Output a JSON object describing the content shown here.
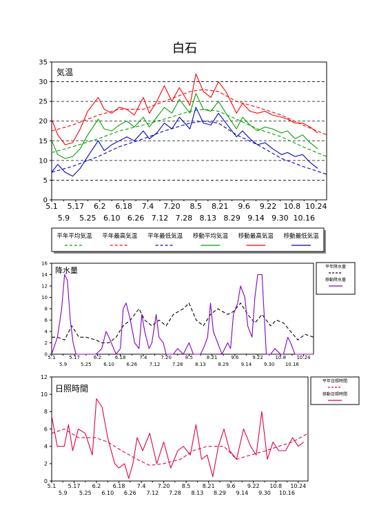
{
  "page": {
    "title": "白石"
  },
  "chart_data": [
    {
      "type": "line",
      "panel_label": "気温",
      "ylim": [
        0,
        35
      ],
      "yticks": [
        0,
        5,
        10,
        15,
        20,
        25,
        30,
        35
      ],
      "x_start": "5.1",
      "x_end": "10.31",
      "xticks_top": [
        "5.1",
        "5.17",
        "6.2",
        "6.18",
        "7.4",
        "7.20",
        "8.5",
        "8.21",
        "9.6",
        "9.22",
        "10.8",
        "10.24"
      ],
      "xticks_bottom": [
        "5.9",
        "5.25",
        "6.10",
        "6.26",
        "7.12",
        "7.28",
        "8.13",
        "8.29",
        "9.14",
        "9.30",
        "10.16"
      ],
      "legend": [
        "平年平均気温",
        "平年最高気温",
        "平年最低気温",
        "移動平均気温",
        "移動最高気温",
        "移動最低気温"
      ],
      "colors": {
        "mean": "#00a000",
        "max": "#ff0000",
        "min": "#0000c0",
        "grid": "#000000"
      },
      "series": [
        {
          "name": "平年平均気温",
          "color": "#00a000",
          "dash": true,
          "x": [
            "5.1",
            "5.15",
            "6.1",
            "6.15",
            "7.1",
            "7.15",
            "8.1",
            "8.10",
            "8.20",
            "9.1",
            "9.15",
            "10.1",
            "10.15",
            "10.31"
          ],
          "y": [
            12,
            13.5,
            15.5,
            17.5,
            19,
            20.5,
            22.5,
            23,
            22.5,
            20.5,
            18,
            16,
            13.5,
            11
          ]
        },
        {
          "name": "平年最高気温",
          "color": "#ff0000",
          "dash": true,
          "x": [
            "5.1",
            "5.15",
            "6.1",
            "6.15",
            "7.1",
            "7.15",
            "8.1",
            "8.10",
            "8.20",
            "9.1",
            "9.15",
            "10.1",
            "10.15",
            "10.31"
          ],
          "y": [
            17.5,
            19,
            21.5,
            23,
            23,
            25,
            27.5,
            28,
            27.5,
            25,
            23.5,
            21.5,
            19,
            16.5
          ]
        },
        {
          "name": "平年最低気温",
          "color": "#0000c0",
          "dash": true,
          "x": [
            "5.1",
            "5.15",
            "6.1",
            "6.15",
            "7.1",
            "7.15",
            "8.1",
            "8.10",
            "8.20",
            "9.1",
            "9.15",
            "10.1",
            "10.15",
            "10.31"
          ],
          "y": [
            7,
            8.5,
            11,
            13.5,
            15.5,
            17.5,
            19.5,
            20,
            19.5,
            16.5,
            14,
            10.5,
            8.5,
            6.5
          ]
        },
        {
          "name": "移動平均気温",
          "color": "#00a000",
          "dash": false,
          "x": [
            "5.1",
            "5.5",
            "5.10",
            "5.15",
            "5.20",
            "5.25",
            "6.1",
            "6.5",
            "6.10",
            "6.15",
            "6.20",
            "6.25",
            "7.1",
            "7.5",
            "7.10",
            "7.15",
            "7.20",
            "7.25",
            "8.1",
            "8.5",
            "8.10",
            "8.15",
            "8.20",
            "8.25",
            "9.1",
            "9.5",
            "9.10",
            "9.15",
            "9.20",
            "9.25",
            "10.1",
            "10.5",
            "10.10",
            "10.15",
            "10.20",
            "10.25"
          ],
          "y": [
            15,
            11.5,
            10.5,
            11,
            13,
            16.5,
            20.5,
            18,
            17.5,
            19,
            20,
            18.5,
            21,
            18.5,
            21,
            23.5,
            22,
            25.5,
            22,
            27,
            23,
            22.5,
            25,
            22,
            18,
            21,
            19,
            17.5,
            18.5,
            18,
            17,
            17.5,
            15.5,
            16.5,
            14.5,
            13
          ]
        },
        {
          "name": "移動最高気温",
          "color": "#ff0000",
          "dash": false,
          "x": [
            "5.1",
            "5.5",
            "5.10",
            "5.15",
            "5.20",
            "5.25",
            "6.1",
            "6.5",
            "6.10",
            "6.15",
            "6.20",
            "6.25",
            "7.1",
            "7.5",
            "7.10",
            "7.15",
            "7.20",
            "7.25",
            "8.1",
            "8.5",
            "8.10",
            "8.15",
            "8.20",
            "8.25",
            "9.1",
            "9.5",
            "9.10",
            "9.15",
            "9.20",
            "9.25",
            "10.1",
            "10.5",
            "10.10",
            "10.15",
            "10.20",
            "10.25"
          ],
          "y": [
            20.5,
            16.5,
            14,
            14.5,
            18,
            22.5,
            26,
            23,
            22,
            23.5,
            23,
            21.5,
            26,
            22,
            25,
            29,
            25,
            28.5,
            24,
            32,
            27.5,
            26,
            30,
            27.5,
            22,
            24.5,
            22.5,
            22,
            22.5,
            21.5,
            21,
            20.5,
            19.5,
            19.5,
            18.5,
            17
          ]
        },
        {
          "name": "移動最低気温",
          "color": "#0000c0",
          "dash": false,
          "x": [
            "5.1",
            "5.5",
            "5.10",
            "5.15",
            "5.20",
            "5.25",
            "6.1",
            "6.5",
            "6.10",
            "6.15",
            "6.20",
            "6.25",
            "7.1",
            "7.5",
            "7.10",
            "7.15",
            "7.20",
            "7.25",
            "8.1",
            "8.5",
            "8.10",
            "8.15",
            "8.20",
            "8.25",
            "9.1",
            "9.5",
            "9.10",
            "9.15",
            "9.20",
            "9.25",
            "10.1",
            "10.5",
            "10.10",
            "10.15",
            "10.20",
            "10.25"
          ],
          "y": [
            7,
            9,
            7,
            6,
            8,
            11,
            15,
            12.5,
            14,
            15,
            16,
            15,
            17.5,
            15.5,
            17,
            19.5,
            18,
            21,
            18,
            23.5,
            19.5,
            19,
            22,
            19.5,
            16,
            17.5,
            15.5,
            14,
            14.5,
            13,
            11.5,
            12,
            11,
            11.5,
            9.5,
            8
          ]
        }
      ]
    },
    {
      "type": "line",
      "panel_label": "降水量",
      "ylim": [
        0,
        16
      ],
      "yticks": [
        0,
        2,
        4,
        6,
        8,
        10,
        12,
        14,
        16
      ],
      "x_start": "5.1",
      "x_end": "10.31",
      "xticks_top": [
        "5.1",
        "5.17",
        "6.2",
        "6.18",
        "7.4",
        "7.20",
        "8.5",
        "8.21",
        "9.6",
        "9.22",
        "10.8",
        "10.24"
      ],
      "xticks_bottom": [
        "5.9",
        "5.25",
        "6.10",
        "6.26",
        "7.12",
        "7.28",
        "8.13",
        "8.29",
        "9.14",
        "9.30",
        "10.16"
      ],
      "legend": [
        "平年降水量",
        "移動降水量"
      ],
      "colors": {
        "normal": "#000000",
        "moving": "#8000c0"
      },
      "series": [
        {
          "name": "平年降水量",
          "color": "#000000",
          "dash": true,
          "x": [
            "5.1",
            "5.5",
            "5.10",
            "5.15",
            "5.20",
            "5.25",
            "6.1",
            "6.5",
            "6.10",
            "6.15",
            "6.20",
            "6.25",
            "7.1",
            "7.5",
            "7.10",
            "7.15",
            "7.20",
            "7.25",
            "8.1",
            "8.5",
            "8.10",
            "8.15",
            "8.20",
            "8.25",
            "9.1",
            "9.5",
            "9.10",
            "9.15",
            "9.20",
            "9.25",
            "10.1",
            "10.5",
            "10.10",
            "10.15",
            "10.20",
            "10.25",
            "10.31"
          ],
          "y": [
            3,
            3,
            2.5,
            5,
            3,
            3,
            2.5,
            2,
            2,
            3,
            5,
            6,
            8,
            6,
            5,
            6,
            5,
            7,
            8,
            9,
            6,
            5,
            7,
            8,
            7,
            7.5,
            9,
            7,
            5.5,
            7,
            5,
            6,
            5.5,
            4,
            2.5,
            3.5,
            3
          ]
        },
        {
          "name": "移動降水量",
          "color": "#8000c0",
          "dash": false,
          "x": [
            "5.1",
            "5.5",
            "5.8",
            "5.10",
            "5.12",
            "5.14",
            "5.16",
            "5.18",
            "5.20",
            "5.25",
            "6.1",
            "6.5",
            "6.8",
            "6.10",
            "6.15",
            "6.18",
            "6.20",
            "6.22",
            "6.25",
            "6.28",
            "7.1",
            "7.3",
            "7.5",
            "7.8",
            "7.10",
            "7.13",
            "7.15",
            "7.18",
            "7.20",
            "7.25",
            "7.28",
            "8.1",
            "8.5",
            "8.8",
            "8.10",
            "8.13",
            "8.15",
            "8.18",
            "8.20",
            "8.22",
            "8.25",
            "8.28",
            "9.1",
            "9.3",
            "9.5",
            "9.8",
            "9.10",
            "9.13",
            "9.15",
            "9.18",
            "9.20",
            "9.22",
            "9.25",
            "9.28",
            "10.1",
            "10.4",
            "10.8",
            "10.10",
            "10.13",
            "10.15",
            "10.18",
            "10.31"
          ],
          "y": [
            0,
            3,
            8,
            14,
            13,
            6,
            2,
            0,
            0,
            0,
            0,
            1,
            4,
            3,
            0,
            1,
            8,
            9,
            6,
            2,
            1,
            7,
            4,
            1,
            2,
            7,
            3,
            2,
            0,
            0,
            1,
            0,
            2,
            0,
            0,
            0,
            1,
            3,
            9,
            4,
            2,
            0,
            2,
            1,
            7,
            9,
            12,
            10,
            5,
            3,
            10,
            14,
            14,
            0,
            0,
            1,
            0,
            0,
            3,
            2,
            0,
            0
          ]
        }
      ]
    },
    {
      "type": "line",
      "panel_label": "日照時間",
      "ylim": [
        0,
        12
      ],
      "yticks": [
        0,
        2,
        4,
        6,
        8,
        10,
        12
      ],
      "x_start": "5.1",
      "x_end": "10.31",
      "xticks_top": [
        "5.1",
        "5.17",
        "6.2",
        "6.18",
        "7.4",
        "7.20",
        "8.5",
        "8.21",
        "9.6",
        "9.22",
        "10.8",
        "10.24"
      ],
      "xticks_bottom": [
        "5.9",
        "5.25",
        "6.10",
        "6.26",
        "7.12",
        "7.28",
        "8.13",
        "8.29",
        "9.14",
        "9.30",
        "10.16"
      ],
      "legend": [
        "平年日照時間",
        "移動日照時間"
      ],
      "colors": {
        "line": "#e00040"
      },
      "series": [
        {
          "name": "平年日照時間",
          "color": "#e00040",
          "dash": true,
          "x": [
            "5.1",
            "5.10",
            "5.20",
            "6.1",
            "6.10",
            "6.20",
            "7.1",
            "7.10",
            "7.20",
            "8.1",
            "8.10",
            "8.20",
            "9.1",
            "9.10",
            "9.20",
            "10.1",
            "10.10",
            "10.20",
            "10.31"
          ],
          "y": [
            5.5,
            6,
            5,
            5,
            4.5,
            3.5,
            2.5,
            1.8,
            2,
            2.5,
            3.5,
            4,
            4,
            2.5,
            3,
            3.5,
            4,
            4.5,
            5.5
          ]
        },
        {
          "name": "移動日照時間",
          "color": "#e00040",
          "dash": false,
          "x": [
            "5.1",
            "5.5",
            "5.10",
            "5.13",
            "5.16",
            "5.20",
            "5.25",
            "5.30",
            "6.2",
            "6.6",
            "6.10",
            "6.15",
            "6.18",
            "6.22",
            "6.25",
            "6.28",
            "7.1",
            "7.5",
            "7.10",
            "7.15",
            "7.20",
            "7.25",
            "7.30",
            "8.3",
            "8.8",
            "8.12",
            "8.16",
            "8.20",
            "8.24",
            "8.28",
            "9.1",
            "9.5",
            "9.10",
            "9.15",
            "9.20",
            "9.24",
            "9.28",
            "10.2",
            "10.6",
            "10.10",
            "10.15",
            "10.20",
            "10.24",
            "10.28"
          ],
          "y": [
            7.5,
            4,
            4,
            6.5,
            3.5,
            6,
            5.5,
            3,
            9.5,
            8.5,
            5,
            2,
            1.5,
            2,
            0.3,
            2,
            5,
            3.5,
            5.5,
            2,
            4.5,
            1.5,
            3.5,
            4,
            3,
            6.5,
            2.5,
            3,
            0.5,
            4,
            6,
            3.5,
            2.5,
            6,
            4,
            3,
            8,
            2.5,
            4.5,
            3.5,
            3.5,
            5,
            4,
            4.5
          ]
        }
      ]
    }
  ]
}
